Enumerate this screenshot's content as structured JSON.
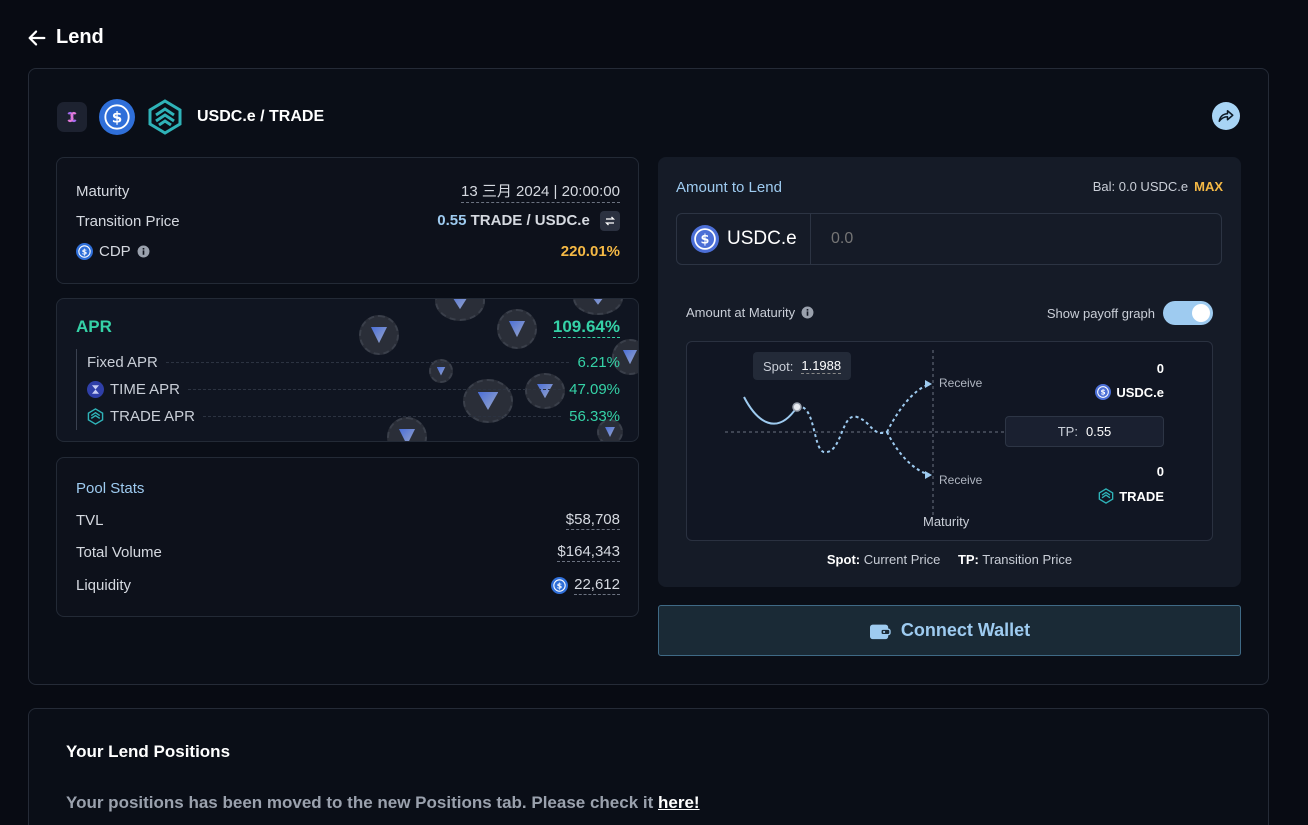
{
  "header": {
    "back_label": "Lend"
  },
  "pool": {
    "pair_name": "USDC.e / TRADE",
    "maturity_label": "Maturity",
    "maturity_value": "13 三月 2024 | 20:00:00",
    "transition_label": "Transition Price",
    "transition_number": "0.55",
    "transition_unit": "TRADE / USDC.e",
    "cdp_label": "CDP",
    "cdp_value": "220.01%"
  },
  "apr": {
    "title": "APR",
    "total": "109.64%",
    "items": [
      {
        "label": "Fixed APR",
        "value": "6.21%"
      },
      {
        "label": "TIME APR",
        "value": "47.09%"
      },
      {
        "label": "TRADE APR",
        "value": "56.33%"
      }
    ]
  },
  "pool_stats": {
    "title": "Pool Stats",
    "tvl_label": "TVL",
    "tvl_value": "$58,708",
    "volume_label": "Total Volume",
    "volume_value": "$164,343",
    "liquidity_label": "Liquidity",
    "liquidity_value": "22,612"
  },
  "lend": {
    "amount_label": "Amount to Lend",
    "balance": "Bal: 0.0 USDC.e",
    "max_label": "MAX",
    "token": "USDC.e",
    "amount_placeholder": "0.0",
    "maturity_label": "Amount at Maturity",
    "payoff_toggle_label": "Show payoff graph",
    "payoff_toggle_on": true
  },
  "graph": {
    "spot_label": "Spot:",
    "spot_value": "1.1988",
    "tp_label": "TP:",
    "tp_value": "0.55",
    "receive_top": "Receive",
    "receive_bottom": "Receive",
    "top_amount": "0",
    "top_token": "USDC.e",
    "bottom_amount": "0",
    "bottom_token": "TRADE",
    "x_label": "Maturity"
  },
  "legend": {
    "spot_key": "Spot:",
    "spot_desc": "Current Price",
    "tp_key": "TP:",
    "tp_desc": "Transition Price"
  },
  "connect_label": "Connect Wallet",
  "positions": {
    "title": "Your Lend Positions",
    "message": "Your positions has been moved to the new Positions tab. Please check it ",
    "link": "here!"
  },
  "colors": {
    "accent_green": "#35d2a7",
    "accent_blue": "#9ecbf0",
    "warning": "#f5b945",
    "usdc": "#2f6fd9"
  }
}
